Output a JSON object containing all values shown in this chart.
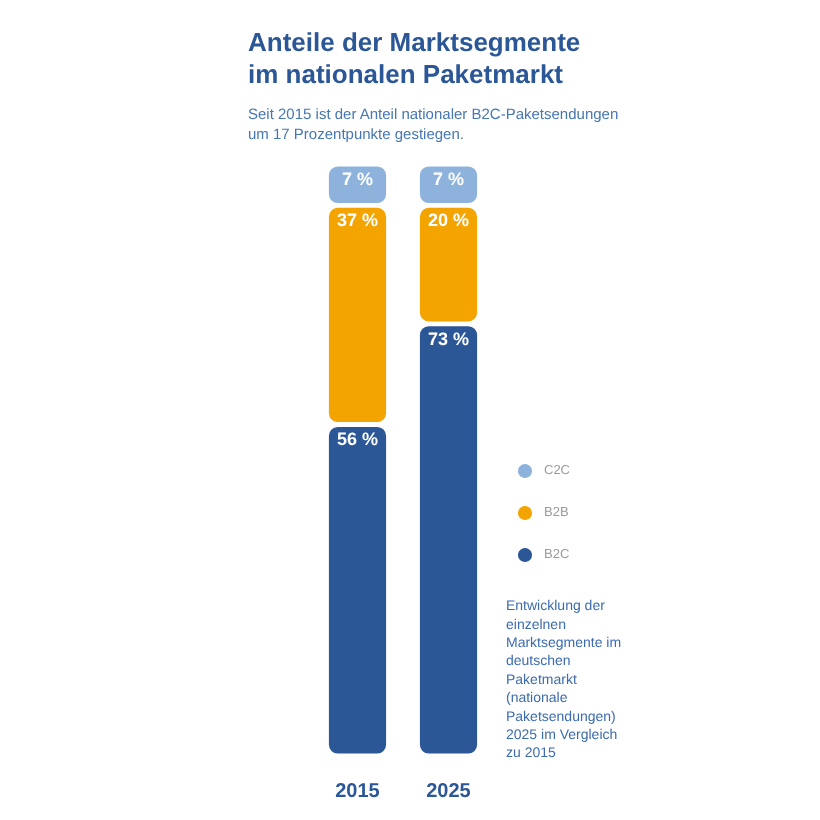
{
  "chart_data": {
    "type": "bar",
    "title": "Anteile der Marktsegmente im nationalen Paketmarkt",
    "subtitle": "Seit 2015 ist der Anteil nationaler B2C-Paketsendungen um 17 Prozentpunkte gestiegen.",
    "categories": [
      "2015",
      "2025"
    ],
    "stacked": true,
    "ylim": [
      0,
      100
    ],
    "tick_labels": "x",
    "legend": "right",
    "series": [
      {
        "name": "B2C",
        "color": "#2b5797",
        "values": [
          56,
          73
        ],
        "value_labels": [
          "56 %",
          "73 %"
        ]
      },
      {
        "name": "B2B",
        "color": "#f4a400",
        "values": [
          37,
          20
        ],
        "value_labels": [
          "37 %",
          "20 %"
        ]
      },
      {
        "name": "C2C",
        "color": "#8db3dd",
        "values": [
          7,
          7
        ],
        "value_labels": [
          "7 %",
          "7 %"
        ]
      }
    ],
    "annotations": [
      "Entwicklung der einzelnen Marktsegmente im deutschen Paketmarkt (nationale Paketsendungen) 2025 im Vergleich zu 2015"
    ]
  }
}
